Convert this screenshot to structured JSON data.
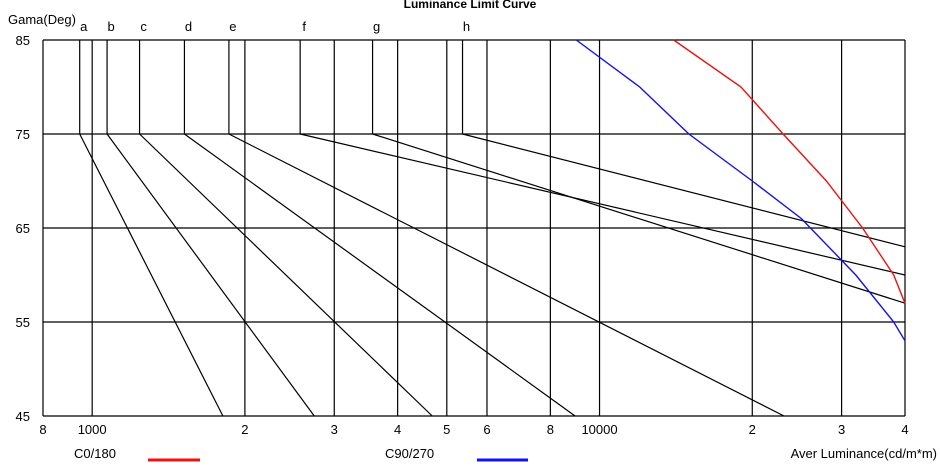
{
  "chart_data": {
    "type": "line",
    "title": "Luminance Limit Curve",
    "ylabel": "Gama(Deg)",
    "xlabel": "Aver Luminance(cd/m*m)",
    "xscale": "log",
    "xlim": [
      800,
      40000
    ],
    "ylim": [
      45,
      85
    ],
    "grid": true,
    "x_tick_labels": [
      {
        "value": 800,
        "label": "8"
      },
      {
        "value": 1000,
        "label": "1000"
      },
      {
        "value": 2000,
        "label": "2"
      },
      {
        "value": 3000,
        "label": "3"
      },
      {
        "value": 4000,
        "label": "4"
      },
      {
        "value": 5000,
        "label": "5"
      },
      {
        "value": 6000,
        "label": "6"
      },
      {
        "value": 8000,
        "label": "8"
      },
      {
        "value": 10000,
        "label": "10000"
      },
      {
        "value": 20000,
        "label": "2"
      },
      {
        "value": 30000,
        "label": "3"
      },
      {
        "value": 40000,
        "label": "4"
      }
    ],
    "y_ticks": [
      85,
      75,
      65,
      55,
      45
    ],
    "limit_lines": [
      {
        "label": "a",
        "x_at_75": 945,
        "x_at_45": 1810
      },
      {
        "label": "b",
        "x_at_75": 1070,
        "x_at_45": 2740
      },
      {
        "label": "c",
        "x_at_75": 1240,
        "x_at_45": 4680
      },
      {
        "label": "d",
        "x_at_75": 1520,
        "x_at_45": 8950
      },
      {
        "label": "e",
        "x_at_75": 1860,
        "x_at_45": 23100
      },
      {
        "label": "f",
        "x_at_75": 2570,
        "x_at_60": 40000
      },
      {
        "label": "g",
        "x_at_75": 3570,
        "x_at_57": 40000
      },
      {
        "label": "h",
        "x_at_75": 5370,
        "x_at_63": 40000
      }
    ],
    "series": [
      {
        "name": "C0/180",
        "color": "#ee1111",
        "x": [
          14000,
          19000,
          23000,
          28000,
          33000,
          38000,
          40000
        ],
        "y": [
          85,
          80,
          75,
          70,
          65,
          60,
          57
        ]
      },
      {
        "name": "C90/270",
        "color": "#1111ee",
        "x": [
          9000,
          12000,
          15000,
          20000,
          25000,
          32000,
          38000,
          40000
        ],
        "y": [
          85,
          80,
          75,
          70,
          66,
          60,
          55,
          53
        ]
      }
    ]
  }
}
